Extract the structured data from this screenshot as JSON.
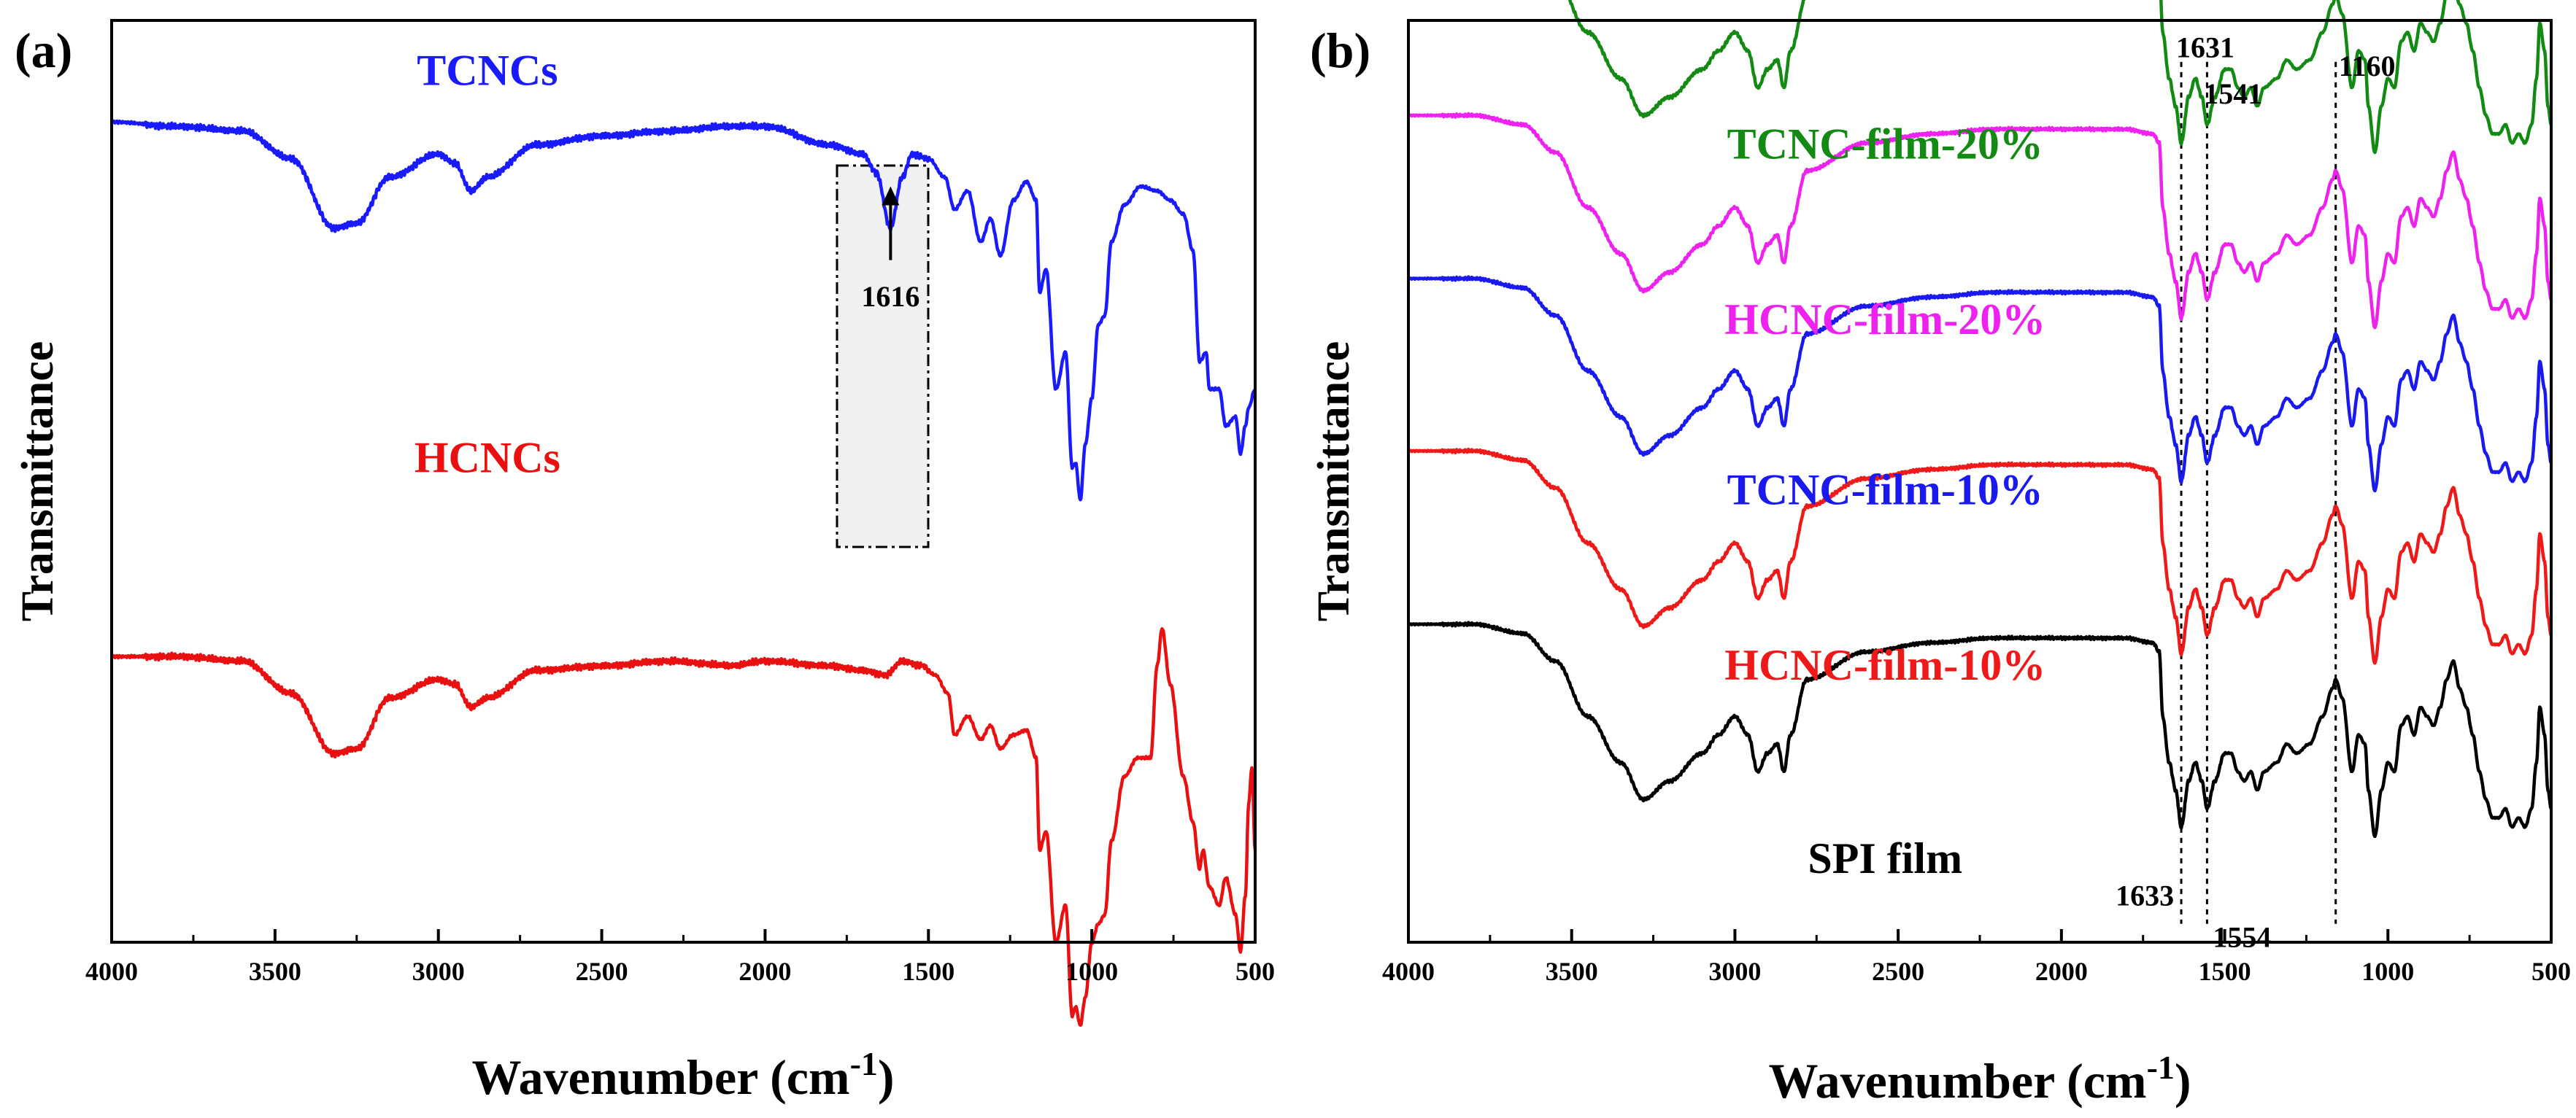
{
  "chart_data": [
    {
      "panel": "(a)",
      "type": "line",
      "xlabel": "Wavenumber (cm",
      "xlabel_sup": "-1",
      "xlabel_close": ")",
      "ylabel": "Transmittance",
      "xlim": [
        4000,
        500
      ],
      "ylim": [
        0,
        1
      ],
      "grid": false,
      "x_ticks": [
        4000,
        3500,
        3000,
        2500,
        2000,
        1500,
        1000,
        500
      ],
      "series": [
        {
          "name": "TCNCs",
          "color": "#1a1aff",
          "label_color": "#1a1aff",
          "offset": 0.58,
          "anchors": [
            [
              4000,
              0.31
            ],
            [
              3800,
              0.305
            ],
            [
              3600,
              0.3
            ],
            [
              3450,
              0.27
            ],
            [
              3320,
              0.195
            ],
            [
              3250,
              0.2
            ],
            [
              3150,
              0.25
            ],
            [
              3000,
              0.275
            ],
            [
              2950,
              0.265
            ],
            [
              2900,
              0.235
            ],
            [
              2850,
              0.25
            ],
            [
              2700,
              0.285
            ],
            [
              2500,
              0.295
            ],
            [
              2300,
              0.3
            ],
            [
              2100,
              0.305
            ],
            [
              2000,
              0.305
            ],
            [
              1800,
              0.285
            ],
            [
              1700,
              0.275
            ],
            [
              1660,
              0.255
            ],
            [
              1616,
              0.195
            ],
            [
              1580,
              0.25
            ],
            [
              1550,
              0.275
            ],
            [
              1500,
              0.27
            ],
            [
              1450,
              0.25
            ],
            [
              1420,
              0.215
            ],
            [
              1380,
              0.235
            ],
            [
              1340,
              0.18
            ],
            [
              1310,
              0.205
            ],
            [
              1280,
              0.165
            ],
            [
              1240,
              0.225
            ],
            [
              1200,
              0.245
            ],
            [
              1170,
              0.225
            ],
            [
              1160,
              0.125
            ],
            [
              1140,
              0.15
            ],
            [
              1110,
              0.02
            ],
            [
              1080,
              0.06
            ],
            [
              1060,
              -0.065
            ],
            [
              1050,
              -0.06
            ],
            [
              1035,
              -0.1
            ],
            [
              1020,
              -0.04
            ],
            [
              1000,
              0.01
            ],
            [
              980,
              0.09
            ],
            [
              960,
              0.1
            ],
            [
              940,
              0.18
            ],
            [
              900,
              0.22
            ],
            [
              850,
              0.24
            ],
            [
              800,
              0.235
            ],
            [
              760,
              0.225
            ],
            [
              720,
              0.21
            ],
            [
              690,
              0.17
            ],
            [
              670,
              0.05
            ],
            [
              650,
              0.06
            ],
            [
              640,
              0.02
            ],
            [
              610,
              0.02
            ],
            [
              590,
              -0.02
            ],
            [
              560,
              -0.01
            ],
            [
              545,
              -0.05
            ],
            [
              530,
              -0.02
            ],
            [
              520,
              0.0
            ],
            [
              500,
              0.02
            ]
          ]
        },
        {
          "name": "HCNCs",
          "color": "#e81010",
          "label_color": "#e81010",
          "offset": 0.0,
          "anchors": [
            [
              4000,
              0.31
            ],
            [
              3800,
              0.31
            ],
            [
              3600,
              0.305
            ],
            [
              3450,
              0.27
            ],
            [
              3320,
              0.205
            ],
            [
              3250,
              0.21
            ],
            [
              3150,
              0.265
            ],
            [
              3000,
              0.285
            ],
            [
              2950,
              0.28
            ],
            [
              2900,
              0.255
            ],
            [
              2850,
              0.265
            ],
            [
              2700,
              0.295
            ],
            [
              2500,
              0.3
            ],
            [
              2300,
              0.305
            ],
            [
              2100,
              0.3
            ],
            [
              2000,
              0.305
            ],
            [
              1800,
              0.3
            ],
            [
              1700,
              0.295
            ],
            [
              1630,
              0.29
            ],
            [
              1580,
              0.305
            ],
            [
              1520,
              0.3
            ],
            [
              1480,
              0.29
            ],
            [
              1440,
              0.27
            ],
            [
              1420,
              0.225
            ],
            [
              1380,
              0.245
            ],
            [
              1340,
              0.22
            ],
            [
              1310,
              0.235
            ],
            [
              1280,
              0.21
            ],
            [
              1240,
              0.225
            ],
            [
              1200,
              0.23
            ],
            [
              1170,
              0.2
            ],
            [
              1160,
              0.1
            ],
            [
              1140,
              0.12
            ],
            [
              1110,
              0.0
            ],
            [
              1080,
              0.04
            ],
            [
              1060,
              -0.08
            ],
            [
              1050,
              -0.07
            ],
            [
              1035,
              -0.09
            ],
            [
              1020,
              -0.06
            ],
            [
              1000,
              0.0
            ],
            [
              980,
              0.02
            ],
            [
              960,
              0.03
            ],
            [
              940,
              0.11
            ],
            [
              900,
              0.18
            ],
            [
              860,
              0.2
            ],
            [
              820,
              0.2
            ],
            [
              800,
              0.3
            ],
            [
              785,
              0.34
            ],
            [
              760,
              0.28
            ],
            [
              720,
              0.18
            ],
            [
              690,
              0.13
            ],
            [
              670,
              0.08
            ],
            [
              660,
              0.1
            ],
            [
              640,
              0.06
            ],
            [
              610,
              0.04
            ],
            [
              590,
              0.07
            ],
            [
              560,
              0.03
            ],
            [
              545,
              -0.01
            ],
            [
              530,
              0.05
            ],
            [
              520,
              0.15
            ],
            [
              510,
              0.19
            ],
            [
              500,
              0.1
            ]
          ]
        }
      ],
      "series_labels": [
        {
          "text": "TCNCs",
          "color": "#1a1aff",
          "x": 2850,
          "y": 0.93
        },
        {
          "text": "HCNCs",
          "color": "#e81010",
          "x": 2850,
          "y": 0.51
        }
      ],
      "highlight_box": {
        "x_range": [
          1780,
          1500
        ],
        "y_range": [
          0.465,
          0.875
        ],
        "fill": "#f0f0f0"
      },
      "annotations": [
        {
          "text": "1616",
          "x": 1616,
          "y": 0.69,
          "arrow_from_y": 0.74,
          "arrow_to_y": 0.82
        }
      ]
    },
    {
      "panel": "(b)",
      "type": "line",
      "xlabel": "Wavenumber (cm",
      "xlabel_sup": "-1",
      "xlabel_close": ")",
      "ylabel": "Transmittance",
      "xlim": [
        4000,
        500
      ],
      "ylim": [
        0,
        1
      ],
      "grid": false,
      "x_ticks": [
        4000,
        3500,
        3000,
        2500,
        2000,
        1500,
        1000,
        500
      ],
      "base_anchors": [
        [
          4000,
          0.2
        ],
        [
          3800,
          0.2
        ],
        [
          3650,
          0.19
        ],
        [
          3550,
          0.16
        ],
        [
          3450,
          0.1
        ],
        [
          3350,
          0.05
        ],
        [
          3280,
          0.01
        ],
        [
          3200,
          0.03
        ],
        [
          3100,
          0.06
        ],
        [
          3050,
          0.08
        ],
        [
          3000,
          0.1
        ],
        [
          2960,
          0.08
        ],
        [
          2930,
          0.04
        ],
        [
          2900,
          0.06
        ],
        [
          2870,
          0.07
        ],
        [
          2850,
          0.04
        ],
        [
          2830,
          0.08
        ],
        [
          2780,
          0.14
        ],
        [
          2600,
          0.17
        ],
        [
          2400,
          0.18
        ],
        [
          2200,
          0.185
        ],
        [
          2000,
          0.185
        ],
        [
          1800,
          0.185
        ],
        [
          1720,
          0.18
        ],
        [
          1700,
          0.17
        ],
        [
          1690,
          0.1
        ],
        [
          1670,
          0.05
        ],
        [
          1650,
          0.02
        ],
        [
          1633,
          -0.02
        ],
        [
          1610,
          0.03
        ],
        [
          1590,
          0.05
        ],
        [
          1570,
          0.03
        ],
        [
          1554,
          0.0
        ],
        [
          1530,
          0.03
        ],
        [
          1500,
          0.06
        ],
        [
          1480,
          0.06
        ],
        [
          1460,
          0.04
        ],
        [
          1440,
          0.03
        ],
        [
          1420,
          0.04
        ],
        [
          1400,
          0.02
        ],
        [
          1380,
          0.04
        ],
        [
          1340,
          0.05
        ],
        [
          1310,
          0.07
        ],
        [
          1280,
          0.06
        ],
        [
          1240,
          0.07
        ],
        [
          1200,
          0.1
        ],
        [
          1170,
          0.13
        ],
        [
          1160,
          0.14
        ],
        [
          1140,
          0.12
        ],
        [
          1110,
          0.04
        ],
        [
          1090,
          0.08
        ],
        [
          1070,
          0.07
        ],
        [
          1060,
          0.02
        ],
        [
          1040,
          -0.03
        ],
        [
          1020,
          0.02
        ],
        [
          1000,
          0.05
        ],
        [
          980,
          0.04
        ],
        [
          960,
          0.09
        ],
        [
          940,
          0.1
        ],
        [
          920,
          0.08
        ],
        [
          900,
          0.11
        ],
        [
          880,
          0.1
        ],
        [
          860,
          0.09
        ],
        [
          840,
          0.11
        ],
        [
          820,
          0.14
        ],
        [
          800,
          0.16
        ],
        [
          780,
          0.13
        ],
        [
          760,
          0.11
        ],
        [
          740,
          0.08
        ],
        [
          720,
          0.04
        ],
        [
          700,
          0.01
        ],
        [
          680,
          -0.01
        ],
        [
          660,
          -0.01
        ],
        [
          640,
          0.0
        ],
        [
          620,
          -0.02
        ],
        [
          600,
          -0.01
        ],
        [
          580,
          -0.02
        ],
        [
          560,
          0.0
        ],
        [
          545,
          0.05
        ],
        [
          535,
          0.11
        ],
        [
          520,
          0.08
        ],
        [
          510,
          0.02
        ],
        [
          500,
          0.0
        ]
      ],
      "series": [
        {
          "name": "SPI film",
          "color": "#000000",
          "label_color": "#000000",
          "offset": 0.145
        },
        {
          "name": "HCNC-film-10%",
          "color": "#ee1a1a",
          "label_color": "#ee1a1a",
          "offset": 0.333
        },
        {
          "name": "TCNC-film-10%",
          "color": "#1a1aee",
          "label_color": "#1a1aee",
          "offset": 0.52
        },
        {
          "name": "HCNC-film-20%",
          "color": "#ee22ee",
          "label_color": "#ee22ee",
          "offset": 0.697
        },
        {
          "name": "TCNC-film-20%",
          "color": "#138a13",
          "label_color": "#138a13",
          "offset": 0.887
        }
      ],
      "series_labels": [
        {
          "text": "TCNC-film-20%",
          "color": "#138a13",
          "x": 2540,
          "y": 0.85
        },
        {
          "text": "HCNC-film-20%",
          "color": "#ee22ee",
          "x": 2540,
          "y": 0.66
        },
        {
          "text": "TCNC-film-10%",
          "color": "#1a1aee",
          "x": 2540,
          "y": 0.475
        },
        {
          "text": "HCNC-film-10%",
          "color": "#ee1a1a",
          "x": 2540,
          "y": 0.285
        },
        {
          "text": "SPI film",
          "color": "#000000",
          "x": 2540,
          "y": 0.075
        }
      ],
      "dashed_lines": [
        1633,
        1554,
        1160
      ],
      "annotations": [
        {
          "text": "1631",
          "x": 1631,
          "y": 0.96
        },
        {
          "text": "1541",
          "x": 1541,
          "y": 0.91
        },
        {
          "text": "1160",
          "x": 1160,
          "y": 0.94
        },
        {
          "text": "1633",
          "x": 1633,
          "y": 0.04
        },
        {
          "text": "1554",
          "x": 1554,
          "y": -0.005
        }
      ]
    }
  ]
}
